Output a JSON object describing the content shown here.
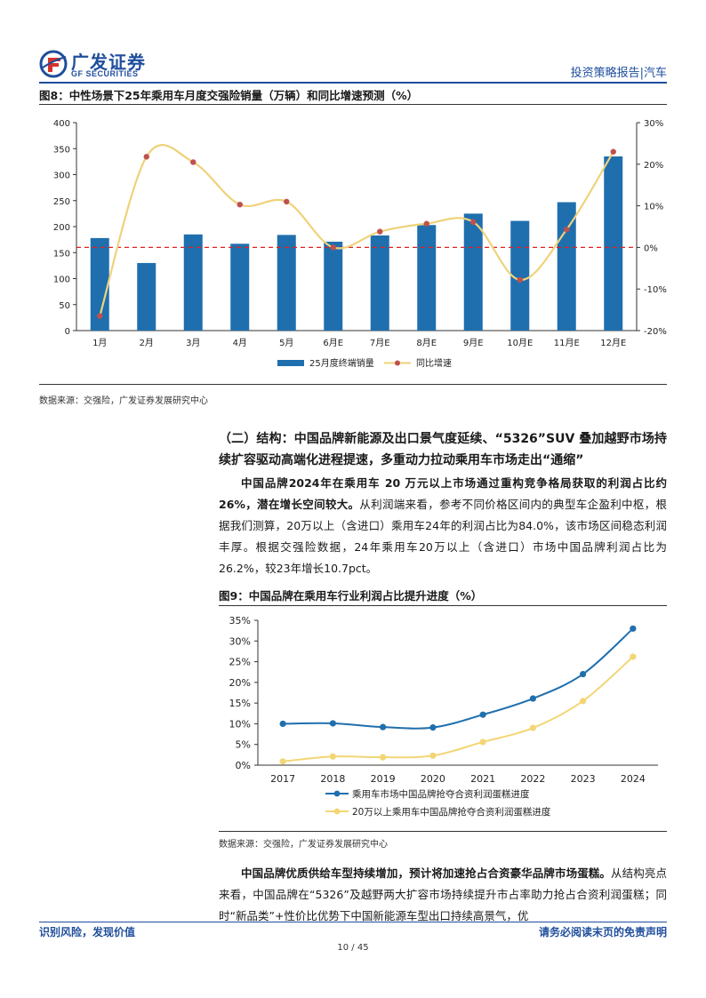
{
  "header": {
    "logo_cn": "广发证券",
    "logo_en": "GF SECURITIES",
    "report_type": "投资策略报告|汽车"
  },
  "figure8": {
    "title": "图8：中性场景下25年乘用车月度交强险销量（万辆）和同比增速预测（%）",
    "source": "数据来源：交强险，广发证券发展研究中心"
  },
  "figure9": {
    "title": "图9：中国品牌在乘用车行业利润占比提升进度（%）",
    "source": "数据来源：交强险，广发证券发展研究中心"
  },
  "section": {
    "title": "（二）结构：中国品牌新能源及出口景气度延续、“5326”SUV 叠加越野市场持续扩容驱动高端化进程提速，多重动力拉动乘用车市场走出“通缩”"
  },
  "para1": {
    "bold": "中国品牌2024年在乘用车 20 万元以上市场通过重构竞争格局获取的利润占比约26%，潜在增长空间较大。",
    "text": "从利润端来看，参考不同价格区间内的典型车企盈利中枢，根据我们测算，20万以上（含进口）乘用车24年的利润占比为84.0%，该市场区间稳态利润丰厚。根据交强险数据，24年乘用车20万以上（含进口）市场中国品牌利润占比为26.2%，较23年增长10.7pct。"
  },
  "para2": {
    "bold": "中国品牌优质供给车型持续增加，预计将加速抢占合资豪华品牌市场蛋糕。",
    "text": "从结构亮点来看，中国品牌在“5326”及越野两大扩容市场持续提升市占率助力抢占合资利润蛋糕；同时“新品类”+性价比优势下中国新能源车型出口持续高景气，优"
  },
  "footer": {
    "left": "识别风险，发现价值",
    "right": "请务必阅读末页的免责声明",
    "page": "10 / 45"
  },
  "colors": {
    "brand_blue": "#1f4e9c",
    "bar_blue": "#1f6fae",
    "yoy_line": "#efd27a",
    "yoy_dot": "#c0504d",
    "ref_line": "#e02020",
    "series1": "#1f6fae",
    "series2": "#f2d675"
  },
  "chart_data": [
    {
      "type": "bar",
      "categories": [
        "1月",
        "2月",
        "3月",
        "4月",
        "5月",
        "6月E",
        "7月E",
        "8月E",
        "9月E",
        "10月E",
        "11月E",
        "12月E"
      ],
      "series": [
        {
          "name": "25月度终端销量",
          "type": "bar",
          "axis": "left",
          "values": [
            178,
            130,
            185,
            167,
            184,
            171,
            183,
            203,
            225,
            211,
            247,
            335
          ]
        },
        {
          "name": "同比增速",
          "type": "line",
          "axis": "right",
          "values": [
            -16.5,
            21.8,
            20.5,
            10.3,
            11.0,
            0.0,
            3.8,
            5.7,
            6.1,
            -7.8,
            4.3,
            23.0
          ]
        }
      ],
      "yleft_ticks": [
        "0",
        "50",
        "100",
        "150",
        "200",
        "250",
        "300",
        "350",
        "400"
      ],
      "yright_ticks": [
        "-20%",
        "-10%",
        "0%",
        "10%",
        "20%",
        "30%"
      ],
      "ylim_left": [
        0,
        400
      ],
      "ylim_right": [
        -20,
        30
      ],
      "legend_position": "bottom"
    },
    {
      "type": "line",
      "categories": [
        "2017",
        "2018",
        "2019",
        "2020",
        "2021",
        "2022",
        "2023",
        "2024"
      ],
      "series": [
        {
          "name": "乘用车市场中国品牌抢夺合资利润蛋糕进度",
          "values": [
            10.0,
            10.1,
            9.2,
            9.1,
            12.2,
            16.1,
            22.0,
            33.0
          ]
        },
        {
          "name": "20万以上乘用车中国品牌抢夺合资利润蛋糕进度",
          "values": [
            0.9,
            2.1,
            1.9,
            2.3,
            5.6,
            9.0,
            15.5,
            26.2
          ]
        }
      ],
      "yticks": [
        "0%",
        "5%",
        "10%",
        "15%",
        "20%",
        "25%",
        "30%",
        "35%"
      ],
      "ylim": [
        0,
        35
      ],
      "legend_position": "bottom"
    }
  ]
}
